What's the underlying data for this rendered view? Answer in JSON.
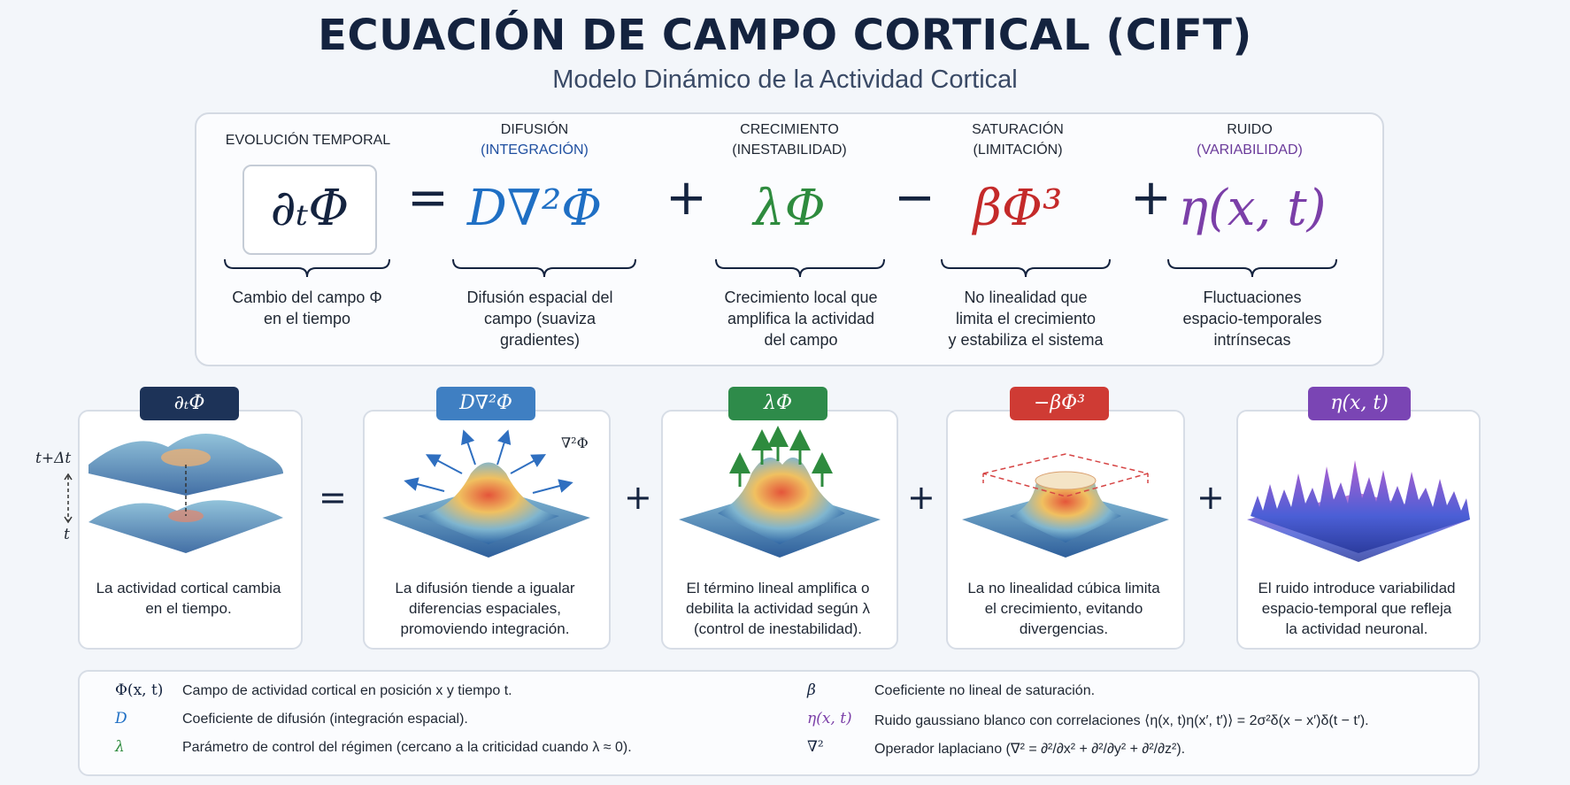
{
  "title": "ECUACIÓN DE CAMPO CORTICAL (CIFT)",
  "subtitle": "Modelo Dinámico de la Actividad Cortical",
  "colors": {
    "navy": "#14233f",
    "diffusion": "#1f6fc4",
    "growth": "#2e8b3e",
    "saturation": "#c42a2a",
    "noise": "#7b3fa8"
  },
  "equation": {
    "equals": "=",
    "plus": "+",
    "minus": "−",
    "terms": [
      {
        "head": "EVOLUCIÓN TEMPORAL",
        "sub": "",
        "math": "∂ₜΦ",
        "desc": [
          "Cambio del campo Φ",
          "en el tiempo"
        ]
      },
      {
        "head": "DIFUSIÓN",
        "sub": "(INTEGRACIÓN)",
        "math": "D∇²Φ",
        "desc": [
          "Difusión espacial del",
          "campo (suaviza",
          "gradientes)"
        ]
      },
      {
        "head": "CRECIMIENTO",
        "sub": "(INESTABILIDAD)",
        "math": "λΦ",
        "desc": [
          "Crecimiento local que",
          "amplifica la actividad",
          "del campo"
        ]
      },
      {
        "head": "SATURACIÓN",
        "sub": "(LIMITACIÓN)",
        "math": "βΦ³",
        "desc": [
          "No linealidad que",
          "limita el crecimiento",
          "y estabiliza el sistema"
        ]
      },
      {
        "head": "RUIDO",
        "sub": "(VARIABILIDAD)",
        "math": "η(x, t)",
        "desc": [
          "Fluctuaciones",
          "espacio-temporales",
          "intrínsecas"
        ]
      }
    ]
  },
  "cards": [
    {
      "tag": "∂ₜΦ",
      "text": [
        "La actividad cortical cambia",
        "en el tiempo."
      ],
      "axis_top": "t+Δt",
      "axis_bottom": "t"
    },
    {
      "tag": "D∇²Φ",
      "text": [
        "La difusión tiende a igualar",
        "diferencias espaciales,",
        "promoviendo integración."
      ],
      "corner": "∇²Φ"
    },
    {
      "tag": "λΦ",
      "text": [
        "El término lineal amplifica o",
        "debilita la actividad según λ",
        "(control de inestabilidad)."
      ]
    },
    {
      "tag": "−βΦ³",
      "text": [
        "La no linealidad cúbica limita",
        "el crecimiento, evitando",
        "divergencias."
      ]
    },
    {
      "tag": "η(x, t)",
      "text": [
        "El ruido introduce variabilidad",
        "espacio-temporal que refleja",
        "la actividad neuronal."
      ]
    }
  ],
  "card_ops": [
    "=",
    "+",
    "+",
    "+"
  ],
  "legend": {
    "left": [
      {
        "sym": "Φ(x, t)",
        "text": "Campo de actividad cortical en posición x y tiempo t."
      },
      {
        "sym": "D",
        "text": "Coeficiente de difusión (integración espacial)."
      },
      {
        "sym": "λ",
        "text": "Parámetro de control del régimen (cercano a la criticidad cuando λ ≈ 0)."
      }
    ],
    "right": [
      {
        "sym": "β",
        "text": "Coeficiente no lineal de saturación."
      },
      {
        "sym": "η(x, t)",
        "text": "Ruido gaussiano blanco con correlaciones ⟨η(x, t)η(x′, t′)⟩ = 2σ²δ(x − x′)δ(t − t′)."
      },
      {
        "sym": "∇²",
        "text": "Operador laplaciano (∇² = ∂²/∂x² + ∂²/∂y² + ∂²/∂z²)."
      }
    ]
  }
}
